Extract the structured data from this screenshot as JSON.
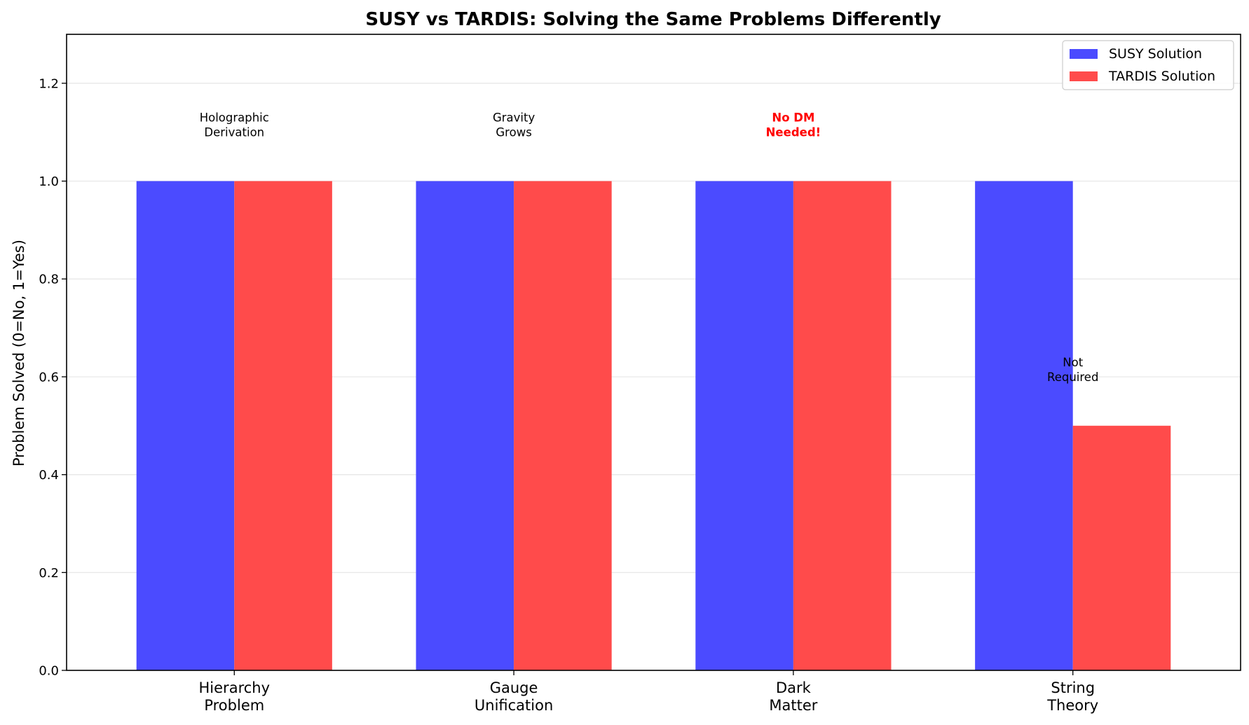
{
  "chart_data": {
    "type": "bar",
    "title": "SUSY vs TARDIS: Solving the Same Problems Differently",
    "xlabel": "",
    "ylabel": "Problem Solved (0=No, 1=Yes)",
    "ylim": [
      0,
      1.3
    ],
    "yticks": [
      "0.0",
      "0.2",
      "0.4",
      "0.6",
      "0.8",
      "1.0",
      "1.2"
    ],
    "categories": [
      [
        "Hierarchy",
        "Problem"
      ],
      [
        "Gauge",
        "Unification"
      ],
      [
        "Dark",
        "Matter"
      ],
      [
        "String",
        "Theory"
      ]
    ],
    "series": [
      {
        "name": "SUSY Solution",
        "color": "#4b4bff",
        "values": [
          1.0,
          1.0,
          1.0,
          1.0
        ]
      },
      {
        "name": "TARDIS Solution",
        "color": "#ff4b4b",
        "values": [
          1.0,
          1.0,
          1.0,
          0.5
        ]
      }
    ],
    "annotations": [
      {
        "category_index": 0,
        "y": 1.1,
        "lines": [
          "Holographic",
          "Derivation"
        ],
        "color": "#000000",
        "bold": false
      },
      {
        "category_index": 1,
        "y": 1.1,
        "lines": [
          "Gravity",
          "Grows"
        ],
        "color": "#000000",
        "bold": false
      },
      {
        "category_index": 2,
        "y": 1.1,
        "lines": [
          "No DM",
          "Needed!"
        ],
        "color": "#ff0000",
        "bold": true
      },
      {
        "category_index": 3,
        "y": 0.6,
        "lines": [
          "Not",
          "Required"
        ],
        "color": "#000000",
        "bold": false
      }
    ],
    "grid": "y",
    "legend_position": "top-right"
  }
}
